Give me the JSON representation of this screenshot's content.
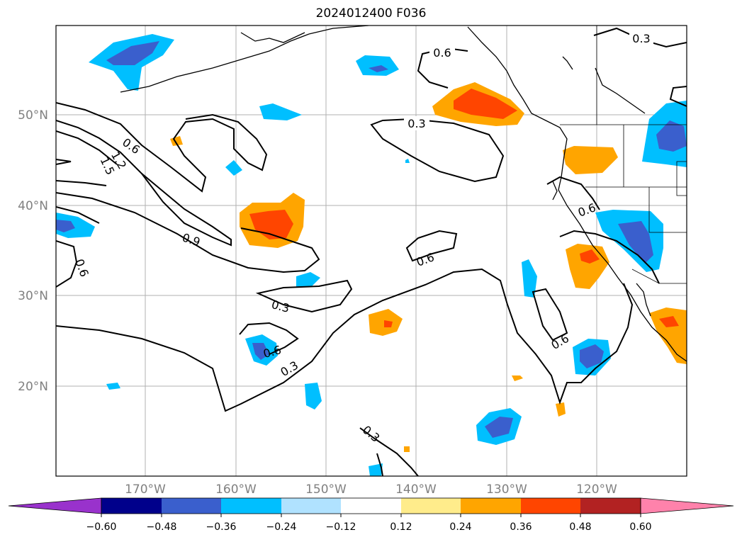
{
  "title": "2024012400 F036",
  "lat_labels": [
    "50°N",
    "40°N",
    "30°N",
    "20°N"
  ],
  "lon_labels": [
    "170°W",
    "160°W",
    "150°W",
    "140°W",
    "130°W",
    "120°W"
  ],
  "colorbar": {
    "colors": [
      "#9932cc",
      "#00008b",
      "#3a5fcd",
      "#00bfff",
      "#b0e2ff",
      "#ffffff",
      "#ffec8b",
      "#ffa500",
      "#ff4500",
      "#b22222",
      "#ff82ab"
    ],
    "tick_labels": [
      "−0.60",
      "−0.48",
      "−0.36",
      "−0.24",
      "−0.12",
      "0.12",
      "0.24",
      "0.36",
      "0.48",
      "0.60"
    ]
  },
  "contour_labels": [
    "0.3",
    "0.6",
    "0.3",
    "0.6",
    "1.2",
    "1.5",
    "0.9",
    "0.6",
    "0.6",
    "0.6",
    "0.3",
    "0.6",
    "0.3",
    "0.6",
    "0.3"
  ]
}
